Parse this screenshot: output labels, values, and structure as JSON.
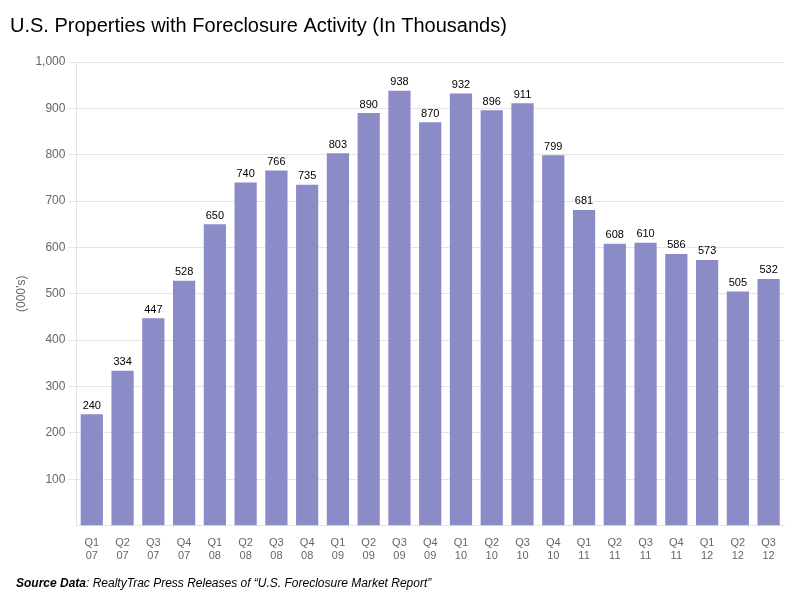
{
  "chart_data": {
    "type": "bar",
    "title": "U.S. Properties with Foreclosure Activity (In Thousands)",
    "ylabel": "(000’s)",
    "categories": [
      "Q1\n07",
      "Q2\n07",
      "Q3\n07",
      "Q4\n07",
      "Q1\n08",
      "Q2\n08",
      "Q3\n08",
      "Q4\n08",
      "Q1\n09",
      "Q2\n09",
      "Q3\n09",
      "Q4\n09",
      "Q1\n10",
      "Q2\n10",
      "Q3\n10",
      "Q4\n10",
      "Q1\n11",
      "Q2\n11",
      "Q3\n11",
      "Q4\n11",
      "Q1\n12",
      "Q2\n12",
      "Q3\n12"
    ],
    "values": [
      240,
      334,
      447,
      528,
      650,
      740,
      766,
      735,
      803,
      890,
      938,
      870,
      932,
      896,
      911,
      799,
      681,
      608,
      610,
      586,
      573,
      505,
      532
    ],
    "color": "#8B8BC8",
    "ylim": [
      0,
      1000
    ],
    "yticks": [
      100,
      200,
      300,
      400,
      500,
      600,
      700,
      800,
      900,
      {
        "value": 1000,
        "label": "1,000"
      }
    ],
    "grid": true,
    "data_labels": true,
    "annotations": [
      "Source Data",
      ": RealtyTrac Press Releases of “U.S. Foreclosure Market Report”"
    ]
  }
}
